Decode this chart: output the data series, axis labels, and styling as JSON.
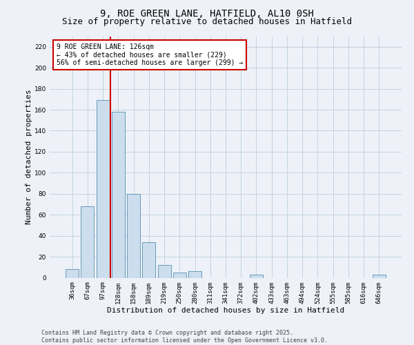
{
  "title_line1": "9, ROE GREEN LANE, HATFIELD, AL10 0SH",
  "title_line2": "Size of property relative to detached houses in Hatfield",
  "xlabel": "Distribution of detached houses by size in Hatfield",
  "ylabel": "Number of detached properties",
  "categories": [
    "36sqm",
    "67sqm",
    "97sqm",
    "128sqm",
    "158sqm",
    "189sqm",
    "219sqm",
    "250sqm",
    "280sqm",
    "311sqm",
    "341sqm",
    "372sqm",
    "402sqm",
    "433sqm",
    "463sqm",
    "494sqm",
    "524sqm",
    "555sqm",
    "585sqm",
    "616sqm",
    "646sqm"
  ],
  "values": [
    8,
    68,
    169,
    158,
    80,
    34,
    12,
    5,
    6,
    0,
    0,
    0,
    3,
    0,
    0,
    0,
    0,
    0,
    0,
    0,
    3
  ],
  "bar_color": "#ccdded",
  "bar_edge_color": "#6699bb",
  "grid_color": "#bbccdd",
  "bg_color": "#eef2f8",
  "vline_color": "#cc0000",
  "annotation_box_text": "9 ROE GREEN LANE: 126sqm\n← 43% of detached houses are smaller (229)\n56% of semi-detached houses are larger (299) →",
  "annotation_box_color": "#cc0000",
  "annotation_box_bg": "#ffffff",
  "ylim": [
    0,
    230
  ],
  "yticks": [
    0,
    20,
    40,
    60,
    80,
    100,
    120,
    140,
    160,
    180,
    200,
    220
  ],
  "footer_text": "Contains HM Land Registry data © Crown copyright and database right 2025.\nContains public sector information licensed under the Open Government Licence v3.0.",
  "title_fontsize": 10,
  "subtitle_fontsize": 9,
  "tick_fontsize": 6.5,
  "label_fontsize": 8,
  "footer_fontsize": 6,
  "annot_fontsize": 7
}
